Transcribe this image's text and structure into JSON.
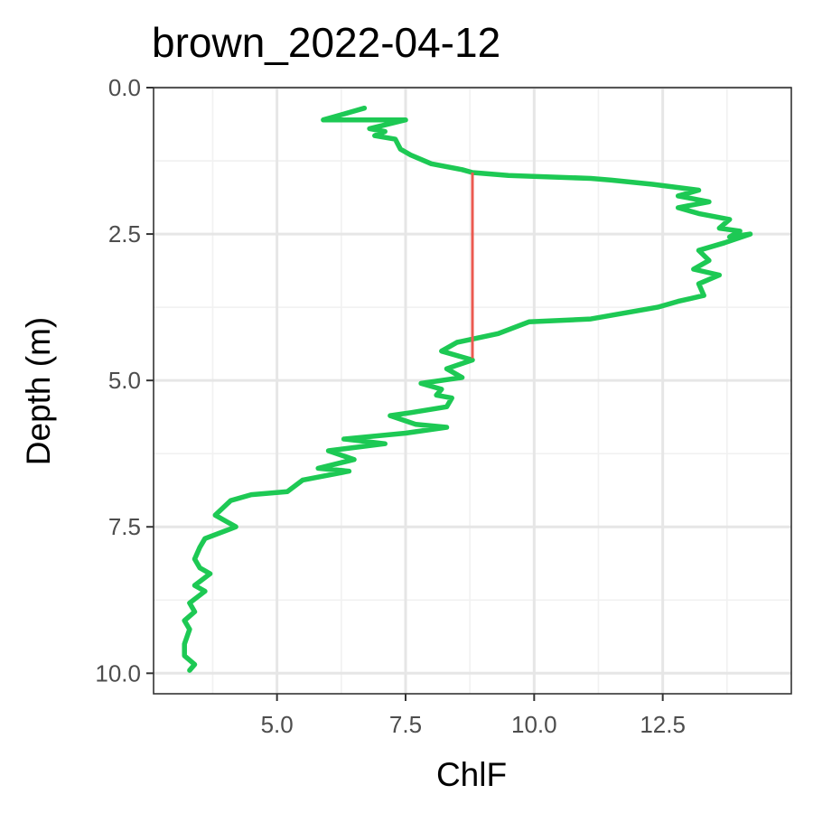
{
  "chart_data": {
    "type": "line",
    "title": "brown_2022-04-12",
    "xlabel": "ChlF",
    "ylabel": "Depth (m)",
    "xlim": [
      2.6,
      15.0
    ],
    "ylim": [
      0.0,
      10.35
    ],
    "y_reversed": true,
    "x_ticks": [
      "5.0",
      "7.5",
      "10.0",
      "12.5"
    ],
    "x_tick_values": [
      5.0,
      7.5,
      10.0,
      12.5
    ],
    "y_ticks": [
      "0.0",
      "2.5",
      "5.0",
      "7.5",
      "10.0"
    ],
    "y_tick_values": [
      0.0,
      2.5,
      5.0,
      7.5,
      10.0
    ],
    "grid": true,
    "legend": "none",
    "colors": {
      "profile": "#1dc954",
      "segment": "#eb5a50",
      "grid_major": "#e6e6e6",
      "grid_minor": "#f1f1f1",
      "panel_border": "#333333"
    },
    "series": [
      {
        "x": [
          6.7,
          5.9,
          7.5,
          6.8,
          7.1,
          6.9,
          7.3,
          7.4,
          7.6,
          8.0,
          8.6,
          8.8,
          9.5,
          11.1,
          11.5,
          12.3,
          13.2,
          12.8,
          13.4,
          12.8,
          13.2,
          13.8,
          13.6,
          14.0,
          13.8,
          14.2,
          13.7,
          13.2,
          13.4,
          13.1,
          13.6,
          13.2,
          13.3,
          12.8,
          12.4,
          11.1,
          9.9,
          9.3,
          8.5,
          8.2,
          8.8,
          8.3,
          8.6,
          7.8,
          8.2,
          8.1,
          8.4,
          8.3,
          7.6,
          7.2,
          7.7,
          8.3,
          7.5,
          6.3,
          7.1,
          6.0,
          6.5,
          5.8,
          6.4,
          5.5,
          5.2,
          4.5,
          4.1,
          3.8,
          4.2,
          3.6,
          3.5,
          3.4,
          3.5,
          3.7,
          3.4,
          3.6,
          3.3,
          3.4,
          3.2,
          3.3,
          3.2,
          3.2,
          3.4,
          3.3
        ],
        "y": [
          0.35,
          0.55,
          0.55,
          0.7,
          0.75,
          0.82,
          0.88,
          1.05,
          1.15,
          1.3,
          1.4,
          1.45,
          1.5,
          1.55,
          1.58,
          1.65,
          1.75,
          1.85,
          1.95,
          2.05,
          2.15,
          2.25,
          2.4,
          2.45,
          2.55,
          2.5,
          2.65,
          2.78,
          2.95,
          3.1,
          3.2,
          3.35,
          3.55,
          3.65,
          3.75,
          3.95,
          4.0,
          4.2,
          4.35,
          4.5,
          4.65,
          4.8,
          4.95,
          5.05,
          5.15,
          5.25,
          5.3,
          5.45,
          5.55,
          5.6,
          5.75,
          5.8,
          5.9,
          6.0,
          6.08,
          6.2,
          6.35,
          6.5,
          6.55,
          6.7,
          6.9,
          6.95,
          7.05,
          7.3,
          7.5,
          7.7,
          7.85,
          8.05,
          8.2,
          8.3,
          8.5,
          8.6,
          8.8,
          8.95,
          9.1,
          9.25,
          9.5,
          9.7,
          9.85,
          9.95
        ]
      },
      {
        "x": [
          8.8,
          8.8
        ],
        "y": [
          1.45,
          4.62
        ]
      }
    ]
  }
}
